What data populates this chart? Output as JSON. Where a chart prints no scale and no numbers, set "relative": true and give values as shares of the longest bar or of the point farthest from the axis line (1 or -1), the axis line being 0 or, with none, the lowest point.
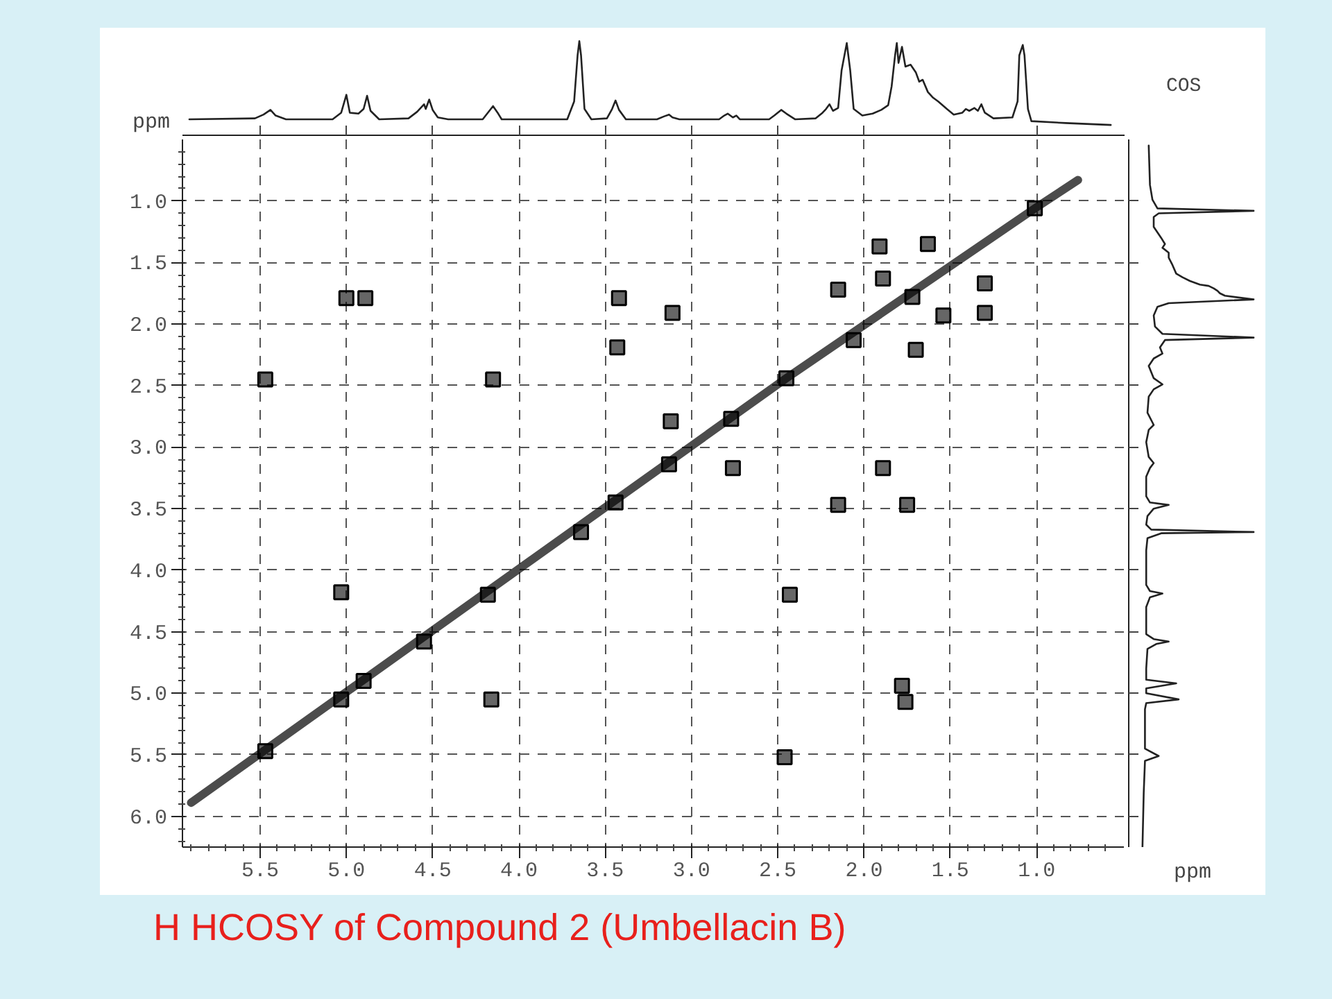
{
  "chart_data": [
    {
      "type": "line",
      "relative": true,
      "xlabel": "ppm",
      "tick_labels": false,
      "xlim": [
        5.95,
        0.49
      ],
      "annotations": [
        "COS"
      ],
      "xticks": [
        {
          "value": 5.5,
          "label": null
        },
        {
          "value": 5,
          "label": null
        },
        {
          "value": 4.5,
          "label": null
        },
        {
          "value": 4,
          "label": null
        },
        {
          "value": 3.5,
          "label": null
        },
        {
          "value": 3,
          "label": null
        },
        {
          "value": 2.5,
          "label": null
        },
        {
          "value": 2,
          "label": null
        },
        {
          "value": 1.5,
          "label": null
        },
        {
          "value": 1,
          "label": null
        }
      ],
      "x": [
        5.91,
        5.53,
        5.48,
        5.44,
        5.41,
        5.35,
        5.08,
        5.03,
        5.0,
        4.98,
        4.93,
        4.9,
        4.88,
        4.86,
        4.81,
        4.64,
        4.59,
        4.55,
        4.54,
        4.52,
        4.5,
        4.47,
        4.41,
        4.21,
        4.18,
        4.15,
        4.12,
        4.1,
        3.72,
        3.68,
        3.66,
        3.65,
        3.64,
        3.62,
        3.58,
        3.49,
        3.46,
        3.44,
        3.42,
        3.38,
        3.2,
        3.16,
        3.13,
        3.11,
        3.07,
        2.84,
        2.81,
        2.79,
        2.76,
        2.74,
        2.72,
        2.55,
        2.52,
        2.48,
        2.45,
        2.4,
        2.28,
        2.24,
        2.22,
        2.2,
        2.18,
        2.15,
        2.13,
        2.1,
        2.08,
        2.06,
        2.01,
        1.95,
        1.9,
        1.86,
        1.84,
        1.82,
        1.81,
        1.8,
        1.78,
        1.76,
        1.73,
        1.7,
        1.68,
        1.66,
        1.63,
        1.6,
        1.57,
        1.52,
        1.48,
        1.43,
        1.41,
        1.39,
        1.36,
        1.34,
        1.32,
        1.3,
        1.25,
        1.14,
        1.11,
        1.1,
        1.08,
        1.07,
        1.05,
        1.03,
        0.83,
        0.57
      ],
      "series": [
        {
          "color": "#222222",
          "values": [
            0.17,
            0.18,
            0.22,
            0.27,
            0.21,
            0.17,
            0.17,
            0.24,
            0.43,
            0.24,
            0.23,
            0.28,
            0.42,
            0.26,
            0.17,
            0.18,
            0.25,
            0.33,
            0.28,
            0.38,
            0.27,
            0.19,
            0.17,
            0.17,
            0.24,
            0.31,
            0.23,
            0.17,
            0.17,
            0.36,
            0.85,
            1.0,
            0.85,
            0.28,
            0.17,
            0.18,
            0.28,
            0.37,
            0.27,
            0.17,
            0.17,
            0.2,
            0.22,
            0.19,
            0.17,
            0.17,
            0.21,
            0.23,
            0.19,
            0.21,
            0.17,
            0.17,
            0.21,
            0.27,
            0.23,
            0.17,
            0.18,
            0.24,
            0.28,
            0.33,
            0.26,
            0.29,
            0.69,
            0.98,
            0.69,
            0.28,
            0.21,
            0.23,
            0.27,
            0.32,
            0.52,
            0.85,
            0.98,
            0.77,
            0.94,
            0.73,
            0.75,
            0.67,
            0.57,
            0.59,
            0.46,
            0.4,
            0.36,
            0.28,
            0.22,
            0.24,
            0.28,
            0.26,
            0.29,
            0.26,
            0.33,
            0.24,
            0.18,
            0.19,
            0.36,
            0.85,
            0.96,
            0.85,
            0.28,
            0.15,
            0.13,
            0.11
          ]
        }
      ]
    },
    {
      "type": "scatter",
      "title": "H HCOSY of Compound 2 (Umbellacin B)",
      "xlim": [
        5.95,
        0.49
      ],
      "ylim": [
        6.25,
        0.5
      ],
      "grid": true,
      "xticks": [
        {
          "value": 5.9,
          "label": null
        },
        {
          "value": 5.8,
          "label": null
        },
        {
          "value": 5.7,
          "label": null
        },
        {
          "value": 5.6,
          "label": null
        },
        5.5,
        {
          "value": 5.4,
          "label": null
        },
        {
          "value": 5.3,
          "label": null
        },
        {
          "value": 5.2,
          "label": null
        },
        {
          "value": 5.1,
          "label": null
        },
        {
          "value": 5,
          "label": "5.0"
        },
        {
          "value": 4.9,
          "label": null
        },
        {
          "value": 4.8,
          "label": null
        },
        {
          "value": 4.7,
          "label": null
        },
        {
          "value": 4.6,
          "label": null
        },
        4.5,
        {
          "value": 4.4,
          "label": null
        },
        {
          "value": 4.3,
          "label": null
        },
        {
          "value": 4.2,
          "label": null
        },
        {
          "value": 4.1,
          "label": null
        },
        {
          "value": 4,
          "label": "4.0"
        },
        {
          "value": 3.9,
          "label": null
        },
        {
          "value": 3.8,
          "label": null
        },
        {
          "value": 3.7,
          "label": null
        },
        {
          "value": 3.6,
          "label": null
        },
        3.5,
        {
          "value": 3.4,
          "label": null
        },
        {
          "value": 3.3,
          "label": null
        },
        {
          "value": 3.2,
          "label": null
        },
        {
          "value": 3.1,
          "label": null
        },
        {
          "value": 3,
          "label": "3.0"
        },
        {
          "value": 2.9,
          "label": null
        },
        {
          "value": 2.8,
          "label": null
        },
        {
          "value": 2.7,
          "label": null
        },
        {
          "value": 2.6,
          "label": null
        },
        2.5,
        {
          "value": 2.4,
          "label": null
        },
        {
          "value": 2.3,
          "label": null
        },
        {
          "value": 2.2,
          "label": null
        },
        {
          "value": 2.1,
          "label": null
        },
        {
          "value": 2,
          "label": "2.0"
        },
        {
          "value": 1.9,
          "label": null
        },
        {
          "value": 1.8,
          "label": null
        },
        {
          "value": 1.7,
          "label": null
        },
        {
          "value": 1.6,
          "label": null
        },
        1.5,
        {
          "value": 1.4,
          "label": null
        },
        {
          "value": 1.3,
          "label": null
        },
        {
          "value": 1.2,
          "label": null
        },
        {
          "value": 1.1,
          "label": null
        },
        {
          "value": 1,
          "label": "1.0"
        },
        {
          "value": 0.9,
          "label": null
        },
        {
          "value": 0.8,
          "label": null
        },
        {
          "value": 0.7,
          "label": null
        },
        {
          "value": 0.6,
          "label": null
        }
      ],
      "yticks": [
        {
          "value": 0.6,
          "label": null
        },
        {
          "value": 0.7,
          "label": null
        },
        {
          "value": 0.8,
          "label": null
        },
        {
          "value": 0.9,
          "label": null
        },
        {
          "value": 1,
          "label": "1.0"
        },
        {
          "value": 1.1,
          "label": null
        },
        {
          "value": 1.2,
          "label": null
        },
        {
          "value": 1.3,
          "label": null
        },
        {
          "value": 1.4,
          "label": null
        },
        1.5,
        {
          "value": 1.6,
          "label": null
        },
        {
          "value": 1.7,
          "label": null
        },
        {
          "value": 1.8,
          "label": null
        },
        {
          "value": 1.9,
          "label": null
        },
        {
          "value": 2,
          "label": "2.0"
        },
        {
          "value": 2.1,
          "label": null
        },
        {
          "value": 2.2,
          "label": null
        },
        {
          "value": 2.3,
          "label": null
        },
        {
          "value": 2.4,
          "label": null
        },
        2.5,
        {
          "value": 2.6,
          "label": null
        },
        {
          "value": 2.7,
          "label": null
        },
        {
          "value": 2.8,
          "label": null
        },
        {
          "value": 2.9,
          "label": null
        },
        {
          "value": 3,
          "label": "3.0"
        },
        {
          "value": 3.1,
          "label": null
        },
        {
          "value": 3.2,
          "label": null
        },
        {
          "value": 3.3,
          "label": null
        },
        {
          "value": 3.4,
          "label": null
        },
        3.5,
        {
          "value": 3.6,
          "label": null
        },
        {
          "value": 3.7,
          "label": null
        },
        {
          "value": 3.8,
          "label": null
        },
        {
          "value": 3.9,
          "label": null
        },
        {
          "value": 4,
          "label": "4.0"
        },
        {
          "value": 4.1,
          "label": null
        },
        {
          "value": 4.2,
          "label": null
        },
        {
          "value": 4.3,
          "label": null
        },
        {
          "value": 4.4,
          "label": null
        },
        4.5,
        {
          "value": 4.6,
          "label": null
        },
        {
          "value": 4.7,
          "label": null
        },
        {
          "value": 4.8,
          "label": null
        },
        {
          "value": 4.9,
          "label": null
        },
        {
          "value": 5,
          "label": "5.0"
        },
        {
          "value": 5.1,
          "label": null
        },
        {
          "value": 5.2,
          "label": null
        },
        {
          "value": 5.3,
          "label": null
        },
        {
          "value": 5.4,
          "label": null
        },
        5.5,
        {
          "value": 5.6,
          "label": null
        },
        {
          "value": 5.7,
          "label": null
        },
        {
          "value": 5.8,
          "label": null
        },
        {
          "value": 5.9,
          "label": null
        },
        {
          "value": 6,
          "label": "6.0"
        },
        {
          "value": 6.1,
          "label": null
        },
        {
          "value": 6.2,
          "label": null
        }
      ],
      "series": [
        {
          "type": "line",
          "marker": "none",
          "color": "#000000",
          "x": [
            5.9,
            2.45,
            1.01,
            0.76
          ],
          "values": [
            5.89,
            2.44,
            1.06,
            0.83
          ]
        },
        {
          "marker": "square",
          "color": "#000000",
          "x": [
            5.47,
            5.03,
            4.9,
            4.55,
            4.18,
            3.64,
            3.44,
            3.13,
            2.77,
            2.45,
            2.06,
            1.72,
            1.01
          ],
          "values": [
            5.47,
            5.05,
            4.9,
            4.58,
            4.2,
            3.69,
            3.45,
            3.14,
            2.77,
            2.44,
            2.13,
            1.78,
            1.06
          ]
        },
        {
          "marker": "square",
          "color": "#000000",
          "x": [
            5.47,
            5.0,
            4.89,
            4.15,
            3.42,
            3.43,
            3.11,
            3.12,
            2.76,
            1.89,
            2.15,
            1.63,
            1.7,
            1.3,
            1.3,
            1.91,
            1.89,
            1.54,
            2.15,
            1.75,
            2.43,
            1.78,
            1.76,
            2.46,
            5.03,
            4.16
          ],
          "values": [
            2.45,
            1.79,
            1.79,
            2.45,
            1.79,
            2.19,
            1.91,
            2.79,
            3.17,
            3.17,
            1.72,
            1.35,
            2.21,
            1.67,
            1.91,
            1.37,
            1.63,
            1.93,
            3.47,
            3.47,
            4.2,
            4.94,
            5.07,
            5.52,
            4.18,
            5.05
          ]
        }
      ]
    },
    {
      "type": "line",
      "relative": true,
      "orientation": "horizontal",
      "xlabel": "ppm",
      "tick_labels": false,
      "ylim": [
        6.25,
        0.5
      ],
      "yticks": [
        {
          "value": 1,
          "label": null
        },
        {
          "value": 1.5,
          "label": null
        },
        {
          "value": 2,
          "label": null
        },
        {
          "value": 2.5,
          "label": null
        },
        {
          "value": 3,
          "label": null
        },
        {
          "value": 3.5,
          "label": null
        },
        {
          "value": 4,
          "label": null
        },
        {
          "value": 4.5,
          "label": null
        },
        {
          "value": 5,
          "label": null
        },
        {
          "value": 5.5,
          "label": null
        },
        {
          "value": 6,
          "label": null
        }
      ],
      "x": [
        0.55,
        0.87,
        0.99,
        1.06,
        1.08,
        1.1,
        1.13,
        1.21,
        1.3,
        1.35,
        1.38,
        1.42,
        1.46,
        1.52,
        1.59,
        1.62,
        1.65,
        1.68,
        1.69,
        1.71,
        1.73,
        1.75,
        1.77,
        1.8,
        1.83,
        1.86,
        1.93,
        2.02,
        2.08,
        2.11,
        2.13,
        2.19,
        2.24,
        2.28,
        2.34,
        2.44,
        2.49,
        2.53,
        2.59,
        2.72,
        2.8,
        2.82,
        2.86,
        2.96,
        3.08,
        3.13,
        3.17,
        3.24,
        3.4,
        3.45,
        3.47,
        3.5,
        3.56,
        3.63,
        3.67,
        3.69,
        3.7,
        3.74,
        3.84,
        4.12,
        4.17,
        4.19,
        4.22,
        4.3,
        4.52,
        4.56,
        4.58,
        4.6,
        4.64,
        4.8,
        4.89,
        4.92,
        4.96,
        5.0,
        5.05,
        5.08,
        5.13,
        5.45,
        5.51,
        5.55,
        5.81,
        6.25
      ],
      "series": [
        {
          "color": "#222222",
          "values": [
            0.16,
            0.17,
            0.19,
            0.23,
            1.0,
            0.24,
            0.2,
            0.2,
            0.26,
            0.29,
            0.27,
            0.32,
            0.32,
            0.35,
            0.38,
            0.43,
            0.49,
            0.57,
            0.64,
            0.68,
            0.71,
            0.73,
            0.77,
            1.0,
            0.32,
            0.23,
            0.2,
            0.21,
            0.27,
            1.0,
            0.29,
            0.25,
            0.27,
            0.2,
            0.16,
            0.2,
            0.27,
            0.2,
            0.16,
            0.15,
            0.19,
            0.2,
            0.16,
            0.14,
            0.16,
            0.2,
            0.17,
            0.14,
            0.14,
            0.17,
            0.32,
            0.2,
            0.15,
            0.14,
            0.18,
            1.0,
            0.26,
            0.15,
            0.14,
            0.14,
            0.17,
            0.27,
            0.17,
            0.14,
            0.14,
            0.2,
            0.32,
            0.22,
            0.15,
            0.14,
            0.14,
            0.38,
            0.14,
            0.14,
            0.4,
            0.14,
            0.13,
            0.13,
            0.24,
            0.13,
            0.12,
            0.11
          ]
        }
      ]
    }
  ]
}
